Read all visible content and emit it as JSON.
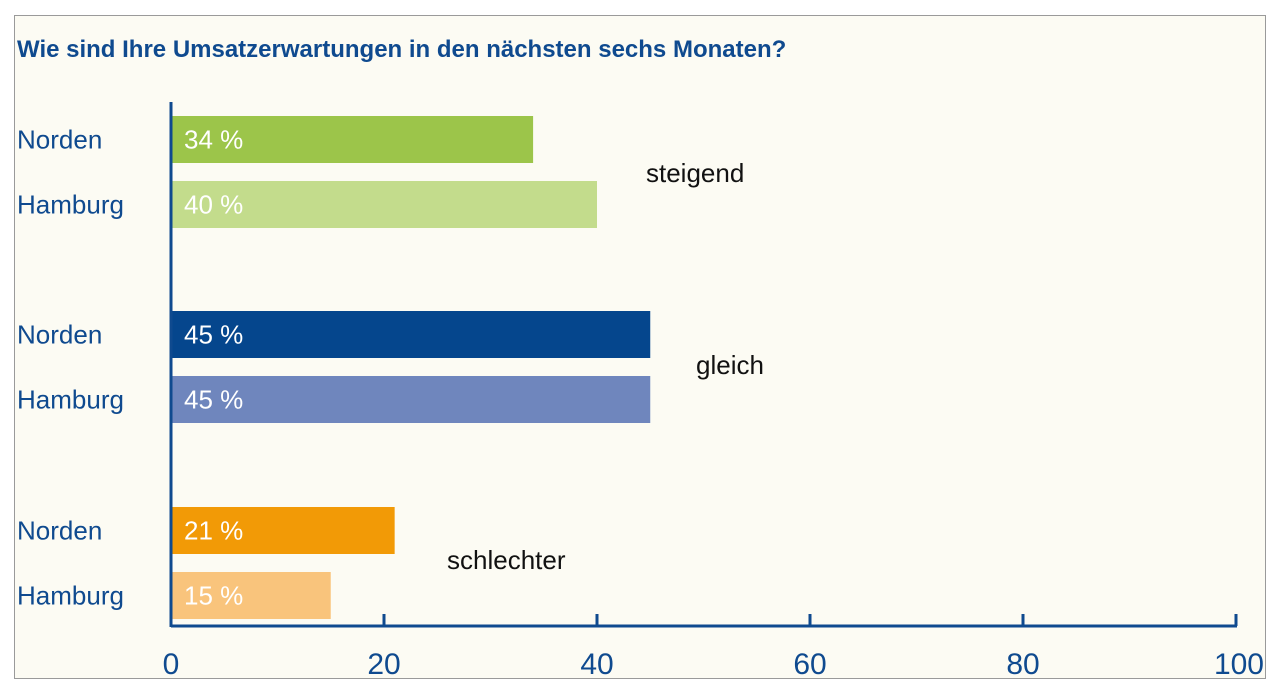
{
  "chart_data": {
    "type": "bar",
    "orientation": "horizontal",
    "title": "Wie sind Ihre Umsatzerwartungen in den nächsten sechs Monaten?",
    "xlim": [
      0,
      100
    ],
    "xticks": [
      0,
      20,
      40,
      60,
      80,
      100
    ],
    "grid": false,
    "groups": [
      {
        "label": "steigend",
        "bars": [
          {
            "region": "Norden",
            "value": 34,
            "display": "34 %",
            "color": "#9cc54a"
          },
          {
            "region": "Hamburg",
            "value": 40,
            "display": "40 %",
            "color": "#c3dc8c"
          }
        ]
      },
      {
        "label": "gleich",
        "bars": [
          {
            "region": "Norden",
            "value": 45,
            "display": "45 %",
            "color": "#05468d"
          },
          {
            "region": "Hamburg",
            "value": 45,
            "display": "45 %",
            "color": "#6f86bd"
          }
        ]
      },
      {
        "label": "schlechter",
        "bars": [
          {
            "region": "Norden",
            "value": 21,
            "display": "21 %",
            "color": "#f29a06"
          },
          {
            "region": "Hamburg",
            "value": 15,
            "display": "15 %",
            "color": "#f9c47c"
          }
        ]
      }
    ],
    "axis_color": "#0f4a8f"
  }
}
